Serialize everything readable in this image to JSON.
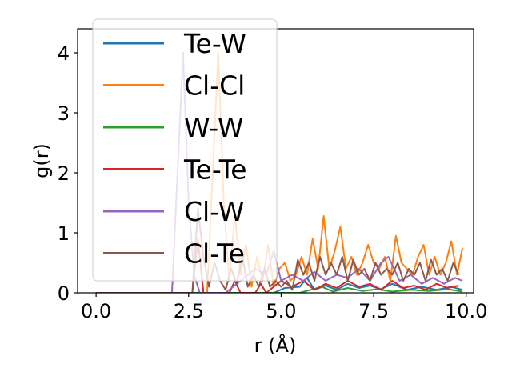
{
  "chart_data": {
    "type": "line",
    "xlabel": "r (Å)",
    "ylabel": "g(r)",
    "xlim": [
      -0.5,
      10.2
    ],
    "ylim": [
      0,
      4.4
    ],
    "xticks": [
      0,
      2.5,
      5,
      7.5,
      10
    ],
    "xtick_labels": [
      "0.0",
      "2.5",
      "5.0",
      "7.5",
      "10.0"
    ],
    "yticks": [
      0,
      1,
      2,
      3,
      4
    ],
    "ytick_labels": [
      "0",
      "1",
      "2",
      "3",
      "4"
    ],
    "grid": false,
    "legend_position": "upper-left",
    "series": [
      {
        "name": "Te-W",
        "color": "#1f77b4",
        "x": [
          0.0,
          4.8,
          5.1,
          5.5,
          5.7,
          5.9,
          6.2,
          6.5,
          6.8,
          7.1,
          7.4,
          7.7,
          8.0,
          8.4,
          8.8,
          9.2,
          9.6,
          9.9
        ],
        "y": [
          0.0,
          0.0,
          0.08,
          0.1,
          0.25,
          0.05,
          0.12,
          0.05,
          0.15,
          0.08,
          0.12,
          0.06,
          0.15,
          0.05,
          0.1,
          0.05,
          0.1,
          0.05
        ]
      },
      {
        "name": "Cl-Cl",
        "color": "#ff7f0e",
        "x": [
          0.0,
          3.0,
          3.15,
          3.3,
          3.45,
          3.6,
          3.75,
          3.9,
          4.05,
          4.2,
          4.35,
          4.5,
          4.65,
          4.8,
          4.95,
          5.1,
          5.25,
          5.4,
          5.55,
          5.7,
          5.85,
          6.0,
          6.15,
          6.3,
          6.45,
          6.6,
          6.75,
          6.9,
          7.05,
          7.2,
          7.35,
          7.5,
          7.65,
          7.8,
          7.95,
          8.1,
          8.25,
          8.4,
          8.55,
          8.7,
          8.85,
          9.0,
          9.15,
          9.3,
          9.45,
          9.6,
          9.75,
          9.9
        ],
        "y": [
          0.0,
          0.0,
          2.0,
          4.0,
          1.5,
          0.2,
          1.3,
          0.3,
          0.8,
          0.1,
          0.6,
          0.2,
          0.8,
          0.1,
          0.4,
          0.5,
          0.2,
          0.3,
          0.6,
          0.3,
          0.9,
          0.4,
          1.28,
          0.4,
          0.7,
          1.1,
          0.4,
          0.6,
          0.3,
          0.5,
          0.8,
          0.5,
          0.4,
          0.6,
          0.2,
          0.95,
          0.5,
          0.4,
          0.3,
          0.6,
          0.8,
          0.3,
          0.6,
          0.3,
          0.5,
          0.86,
          0.3,
          0.75
        ]
      },
      {
        "name": "W-W",
        "color": "#2ca02c",
        "x": [
          0.0,
          5.5,
          5.8,
          6.1,
          6.4,
          6.8,
          7.2,
          7.6,
          8.0,
          8.5,
          9.0,
          9.5,
          9.9
        ],
        "y": [
          0.0,
          0.0,
          0.05,
          0.1,
          0.02,
          0.08,
          0.03,
          0.06,
          0.02,
          0.05,
          0.03,
          0.06,
          0.02
        ]
      },
      {
        "name": "Te-Te",
        "color": "#d62728",
        "x": [
          0.0,
          2.6,
          2.75,
          2.9,
          3.1,
          3.6,
          3.75,
          3.9,
          4.3,
          4.45,
          4.6,
          5.0,
          5.3,
          5.6,
          5.9,
          6.2,
          6.5,
          6.8,
          7.1,
          7.4,
          7.7,
          8.0,
          8.3,
          8.6,
          8.9,
          9.2,
          9.5,
          9.8
        ],
        "y": [
          0.0,
          0.0,
          0.9,
          0.0,
          0.0,
          0.0,
          0.2,
          0.0,
          0.0,
          0.15,
          0.0,
          0.2,
          0.1,
          0.2,
          0.05,
          0.15,
          0.08,
          0.2,
          0.1,
          0.15,
          0.05,
          0.2,
          0.08,
          0.12,
          0.05,
          0.15,
          0.08,
          0.12
        ]
      },
      {
        "name": "Cl-W",
        "color": "#9467bd",
        "x": [
          0.0,
          2.05,
          2.2,
          2.35,
          2.5,
          2.65,
          2.8,
          3.5,
          3.9,
          4.3,
          4.6,
          4.8,
          5.0,
          5.3,
          5.6,
          5.9,
          6.2,
          6.5,
          6.8,
          7.1,
          7.4,
          7.7,
          7.9,
          8.2,
          8.5,
          8.8,
          9.1,
          9.4,
          9.7,
          9.9
        ],
        "y": [
          0.0,
          0.0,
          2.0,
          4.0,
          1.5,
          0.3,
          0.0,
          0.0,
          0.2,
          0.4,
          0.3,
          0.7,
          0.2,
          0.3,
          0.2,
          0.35,
          0.2,
          0.3,
          0.25,
          0.4,
          0.2,
          0.5,
          0.6,
          0.2,
          0.3,
          0.15,
          0.25,
          0.15,
          0.25,
          0.2
        ]
      },
      {
        "name": "Cl-Te",
        "color": "#8c564b",
        "x": [
          0.0,
          2.6,
          2.75,
          2.9,
          3.05,
          3.2,
          3.35,
          3.5,
          3.65,
          3.8,
          3.95,
          4.1,
          4.25,
          4.4,
          4.55,
          4.7,
          4.85,
          5.0,
          5.15,
          5.3,
          5.45,
          5.6,
          5.75,
          5.9,
          6.05,
          6.2,
          6.35,
          6.5,
          6.65,
          6.8,
          6.95,
          7.1,
          7.25,
          7.4,
          7.55,
          7.7,
          7.85,
          8.0,
          8.15,
          8.3,
          8.45,
          8.6,
          8.75,
          8.9,
          9.05,
          9.2,
          9.35,
          9.5,
          9.65,
          9.8
        ],
        "y": [
          0.0,
          0.0,
          1.4,
          0.6,
          0.1,
          0.5,
          0.2,
          0.05,
          0.4,
          0.15,
          0.6,
          0.1,
          0.3,
          0.1,
          0.4,
          0.1,
          0.2,
          0.1,
          0.2,
          0.05,
          0.55,
          0.3,
          0.5,
          0.2,
          0.6,
          0.3,
          0.5,
          0.3,
          0.6,
          0.2,
          0.55,
          0.3,
          0.4,
          0.2,
          0.5,
          0.3,
          0.4,
          0.3,
          0.5,
          0.2,
          0.4,
          0.3,
          0.5,
          0.2,
          0.55,
          0.3,
          0.4,
          0.2,
          0.5,
          0.3
        ]
      }
    ]
  }
}
